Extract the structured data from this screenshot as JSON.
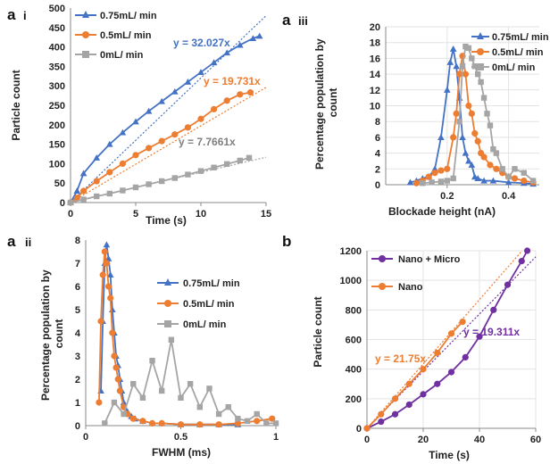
{
  "chart_data": [
    {
      "id": "ai",
      "type": "line",
      "panel_label": "a",
      "panel_sublabel": "i",
      "xlabel": "Time (s)",
      "ylabel": "Particle count",
      "xlim": [
        0,
        15
      ],
      "ylim": [
        0,
        500
      ],
      "xticks": [
        "0",
        "5",
        "10",
        "15"
      ],
      "yticks": [
        "0",
        "50",
        "100",
        "150",
        "200",
        "250",
        "300",
        "350",
        "400",
        "450",
        "500"
      ],
      "legend": [
        "0.75mL/ min",
        "0.5mL/ min",
        "0mL/ min"
      ],
      "annotations": [
        "y = 32.027x",
        "y = 19.731x",
        "y = 7.7661x"
      ],
      "series": [
        {
          "name": "0.75mL/ min",
          "color": "#4472c4",
          "marker": "triangle",
          "x": [
            0,
            0.5,
            1,
            2,
            3,
            4,
            5,
            6,
            7,
            8,
            9,
            10,
            11,
            12,
            13,
            14,
            14.5
          ],
          "y": [
            0,
            30,
            75,
            115,
            150,
            180,
            208,
            235,
            260,
            285,
            310,
            335,
            360,
            385,
            405,
            422,
            428
          ]
        },
        {
          "name": "0.5mL/ min",
          "color": "#ed7d31",
          "marker": "circle",
          "x": [
            0,
            0.5,
            1,
            2,
            3,
            4,
            5,
            6,
            7,
            8,
            9,
            10,
            11,
            12,
            13,
            13.8
          ],
          "y": [
            0,
            12,
            30,
            55,
            78,
            100,
            122,
            140,
            158,
            175,
            193,
            215,
            240,
            262,
            278,
            283
          ]
        },
        {
          "name": "0mL/ min",
          "color": "#a5a5a5",
          "marker": "square",
          "x": [
            0,
            1,
            2,
            3,
            4,
            5,
            6,
            7,
            8,
            9,
            10,
            11,
            12,
            13,
            13.7
          ],
          "y": [
            0,
            8,
            16,
            23,
            31,
            39,
            47,
            55,
            63,
            72,
            81,
            90,
            99,
            108,
            115
          ]
        }
      ],
      "fits": [
        {
          "name": "y = 32.027x",
          "slope": 32.027,
          "color": "#4472c4"
        },
        {
          "name": "y = 19.731x",
          "slope": 19.731,
          "color": "#ed7d31"
        },
        {
          "name": "y = 7.7661x",
          "slope": 7.7661,
          "color": "#a5a5a5"
        }
      ]
    },
    {
      "id": "aiii",
      "type": "line",
      "panel_label": "a",
      "panel_sublabel": "iii",
      "xlabel": "Blockade height (nA)",
      "ylabel": "Percentage population by count",
      "xlim": [
        0,
        0.5
      ],
      "ylim": [
        0,
        20
      ],
      "xticks": [
        "0.2",
        "0.4"
      ],
      "yticks": [
        "0",
        "2",
        "4",
        "6",
        "8",
        "10",
        "12",
        "14",
        "16",
        "18",
        "20"
      ],
      "legend": [
        "0.75mL/ min",
        "0.5mL/ min",
        "0mL/ min"
      ],
      "series": [
        {
          "name": "0.75mL/ min",
          "color": "#4472c4",
          "marker": "triangle",
          "x": [
            0.08,
            0.1,
            0.12,
            0.14,
            0.16,
            0.18,
            0.2,
            0.21,
            0.22,
            0.23,
            0.24,
            0.25,
            0.26,
            0.27,
            0.28,
            0.29,
            0.3,
            0.32,
            0.35,
            0.4,
            0.45,
            0.48
          ],
          "y": [
            0.3,
            0.5,
            0.8,
            1.0,
            2.0,
            6.0,
            12.0,
            15.5,
            17.2,
            15.0,
            11.0,
            6.0,
            4.0,
            3.0,
            2.5,
            1.0,
            0.8,
            0.5,
            0.5,
            0.3,
            0.2,
            0.1
          ]
        },
        {
          "name": "0.5mL/ min",
          "color": "#ed7d31",
          "marker": "circle",
          "x": [
            0.1,
            0.12,
            0.14,
            0.16,
            0.18,
            0.2,
            0.22,
            0.23,
            0.24,
            0.25,
            0.26,
            0.27,
            0.28,
            0.29,
            0.3,
            0.31,
            0.32,
            0.34,
            0.36,
            0.38,
            0.4,
            0.42,
            0.45,
            0.48
          ],
          "y": [
            0.2,
            0.5,
            1.0,
            1.5,
            1.8,
            2.0,
            6.0,
            9.0,
            14.0,
            16.3,
            14.0,
            10.0,
            9.0,
            6.5,
            5.5,
            4.0,
            3.5,
            2.5,
            2.0,
            1.5,
            1.0,
            0.8,
            0.5,
            0.3
          ]
        },
        {
          "name": "0mL/ min",
          "color": "#a5a5a5",
          "marker": "square",
          "x": [
            0.12,
            0.15,
            0.18,
            0.2,
            0.22,
            0.24,
            0.25,
            0.26,
            0.27,
            0.28,
            0.29,
            0.3,
            0.31,
            0.32,
            0.33,
            0.34,
            0.35,
            0.36,
            0.38,
            0.4,
            0.42,
            0.45,
            0.48
          ],
          "y": [
            0.2,
            0.3,
            0.4,
            0.5,
            0.8,
            8.0,
            15.0,
            17.5,
            17.3,
            16.0,
            15.0,
            14.0,
            13.0,
            11.0,
            9.0,
            7.5,
            4.5,
            4.0,
            2.0,
            1.0,
            2.0,
            1.5,
            0.5
          ]
        }
      ]
    },
    {
      "id": "aii",
      "type": "line",
      "panel_label": "a",
      "panel_sublabel": "ii",
      "xlabel": "FWHM (ms)",
      "ylabel": "Percentage population by count",
      "xlim": [
        0,
        1
      ],
      "ylim": [
        0,
        8
      ],
      "xticks": [
        "0",
        "0.5",
        "1"
      ],
      "yticks": [
        "0",
        "1",
        "2",
        "3",
        "4",
        "5",
        "6",
        "7",
        "8"
      ],
      "legend": [
        "0.75mL/ min",
        "0.5mL/ min",
        "0mL/ min"
      ],
      "series": [
        {
          "name": "0.75mL/ min",
          "color": "#4472c4",
          "marker": "triangle",
          "x": [
            0.08,
            0.09,
            0.1,
            0.11,
            0.12,
            0.13,
            0.14,
            0.15,
            0.16,
            0.17,
            0.18,
            0.19,
            0.2,
            0.22,
            0.24,
            0.26,
            0.3,
            0.35,
            0.4,
            0.5,
            0.6,
            0.7,
            0.8
          ],
          "y": [
            1.5,
            4.5,
            7.0,
            7.8,
            7.2,
            6.5,
            5.0,
            4.0,
            3.0,
            2.6,
            2.0,
            1.5,
            1.0,
            0.6,
            0.4,
            0.3,
            0.2,
            0.1,
            0.1,
            0.05,
            0.05,
            0.05,
            0.05
          ]
        },
        {
          "name": "0.5mL/ min",
          "color": "#ed7d31",
          "marker": "circle",
          "x": [
            0.07,
            0.08,
            0.09,
            0.1,
            0.11,
            0.12,
            0.13,
            0.14,
            0.15,
            0.16,
            0.17,
            0.18,
            0.2,
            0.22,
            0.25,
            0.3,
            0.35,
            0.4,
            0.5,
            0.6,
            0.7,
            0.8,
            0.9,
            0.98
          ],
          "y": [
            1.0,
            4.5,
            6.5,
            7.5,
            7.0,
            6.0,
            5.5,
            4.0,
            3.0,
            2.5,
            2.0,
            1.5,
            0.8,
            0.5,
            0.3,
            0.2,
            0.1,
            0.1,
            0.05,
            0.05,
            0.05,
            0.1,
            0.2,
            0.3
          ]
        },
        {
          "name": "0mL/ min",
          "color": "#a5a5a5",
          "marker": "square",
          "x": [
            0.1,
            0.15,
            0.2,
            0.25,
            0.3,
            0.35,
            0.4,
            0.45,
            0.5,
            0.55,
            0.6,
            0.65,
            0.7,
            0.75,
            0.8,
            0.85,
            0.9,
            0.95,
            1.0
          ],
          "y": [
            0.1,
            1.0,
            0.5,
            1.8,
            1.2,
            2.8,
            1.5,
            3.7,
            1.2,
            1.8,
            0.8,
            1.6,
            0.5,
            0.8,
            0.3,
            0.2,
            0.5,
            0.1,
            0.1
          ]
        }
      ]
    },
    {
      "id": "b",
      "type": "line",
      "panel_label": "b",
      "panel_sublabel": "",
      "xlabel": "Time (s)",
      "ylabel": "Particle count",
      "xlim": [
        0,
        60
      ],
      "ylim": [
        0,
        1200
      ],
      "xticks": [
        "0",
        "20",
        "40",
        "60"
      ],
      "yticks": [
        "0",
        "200",
        "400",
        "600",
        "800",
        "1000",
        "1200"
      ],
      "legend": [
        "Nano + Micro",
        "Nano"
      ],
      "annotations": [
        "y = 19.311x",
        "y = 21.75x"
      ],
      "series": [
        {
          "name": "Nano + Micro",
          "color": "#7030a0",
          "marker": "circle",
          "x": [
            0,
            5,
            10,
            15,
            20,
            25,
            30,
            35,
            40,
            45,
            50,
            55,
            57
          ],
          "y": [
            0,
            45,
            95,
            160,
            230,
            300,
            380,
            480,
            620,
            800,
            970,
            1130,
            1200
          ]
        },
        {
          "name": "Nano",
          "color": "#ed7d31",
          "marker": "circle",
          "x": [
            0,
            5,
            10,
            15,
            20,
            25,
            30,
            34
          ],
          "y": [
            0,
            95,
            200,
            300,
            400,
            510,
            640,
            720
          ]
        }
      ],
      "fits": [
        {
          "name": "y = 19.311x",
          "slope": 19.311,
          "color": "#7030a0"
        },
        {
          "name": "y = 21.75x",
          "slope": 21.75,
          "color": "#ed7d31"
        }
      ]
    }
  ]
}
